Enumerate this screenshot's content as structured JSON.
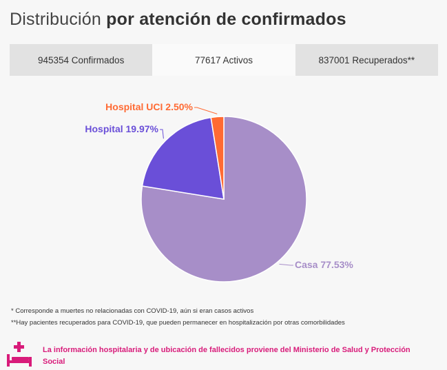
{
  "header": {
    "title_light": "Distribución",
    "title_bold": "por atención de confirmados"
  },
  "tabs": [
    {
      "label": "945354 Confirmados",
      "active": false
    },
    {
      "label": "77617 Activos",
      "active": true
    },
    {
      "label": "837001 Recuperados**",
      "active": false
    }
  ],
  "chart_data": {
    "type": "pie",
    "slices": [
      {
        "label": "Casa",
        "value": 77.53,
        "color": "#a78ec8",
        "label_text": "Casa 77.53%"
      },
      {
        "label": "Hospital",
        "value": 19.97,
        "color": "#6a4fd8",
        "label_text": "Hospital 19.97%"
      },
      {
        "label": "Hospital UCI",
        "value": 2.5,
        "color": "#ff6a33",
        "label_text": "Hospital UCI 2.50%"
      }
    ]
  },
  "notes": [
    "* Corresponde a muertes no relacionadas con COVID-19, aún si eran casos activos",
    "**Hay pacientes recuperados para COVID-19, que pueden permanecer en hospitalización por otras comorbilidades"
  ],
  "footer": {
    "text": "La información hospitalaria y de ubicación de fallecidos proviene del Ministerio de Salud y Protección Social",
    "icon": "hospital-bed-icon",
    "color": "#d81b7a"
  }
}
